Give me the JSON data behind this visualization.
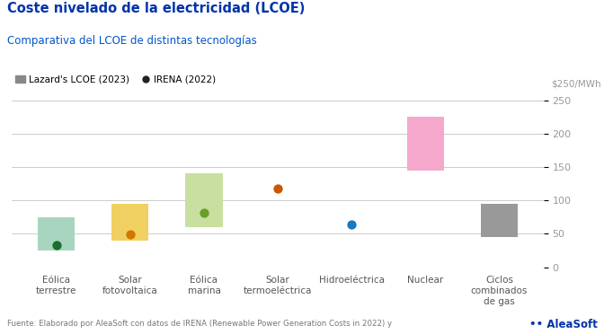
{
  "title": "Coste nivelado de la electricidad (LCOE)",
  "subtitle": "Comparativa del LCOE de distintas tecnologías",
  "ylabel_right": "$250/MWh",
  "categories": [
    "Eólica\nterrestre",
    "Solar\nfotovoltaica",
    "Eólica\nmarina",
    "Solar\ntermoeléctrica",
    "Hidroeléctrica",
    "Nuclear",
    "Ciclos\ncombinados\nde gas"
  ],
  "bar_bottom": [
    25,
    40,
    60,
    null,
    null,
    145,
    45
  ],
  "bar_top": [
    75,
    95,
    140,
    null,
    null,
    225,
    95
  ],
  "bar_colors": [
    "#a8d5bf",
    "#f0d060",
    "#c8dfa0",
    null,
    null,
    "#f5a8cc",
    "#999999"
  ],
  "irena_values": [
    33,
    49,
    81,
    118,
    64,
    null,
    null
  ],
  "irena_colors": [
    "#1a6e30",
    "#d07800",
    "#6a9e28",
    "#cc5500",
    "#1878c0",
    null,
    null
  ],
  "ylim": [
    0,
    260
  ],
  "yticks": [
    0,
    50,
    100,
    150,
    200,
    250
  ],
  "grid_color": "#cccccc",
  "background_color": "#ffffff",
  "title_color": "#0033aa",
  "subtitle_color": "#0055cc",
  "legend_lazard_color": "#888888",
  "legend_irena_color": "#222222",
  "source_text": "Fuente: Elaborado por AleaSoft con datos de IRENA (Renewable Power Generation Costs in 2022) y",
  "aleasoft_color": "#0033aa",
  "bar_width": 0.5
}
